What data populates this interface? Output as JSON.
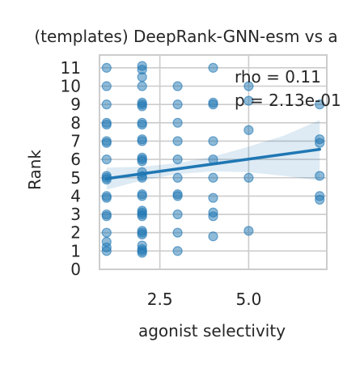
{
  "chart_data": {
    "type": "scatter",
    "title": "(templates) DeepRank-GNN-esm vs a",
    "xlabel": "agonist selectivity",
    "ylabel": "Rank",
    "xlim": [
      0.8,
      7.2
    ],
    "ylim": [
      0,
      11.7
    ],
    "xticks": [
      2.5,
      5.0
    ],
    "xtick_labels": [
      "2.5",
      "5.0"
    ],
    "yticks": [
      0,
      1,
      2,
      3,
      4,
      5,
      6,
      7,
      8,
      9,
      10,
      11
    ],
    "ytick_labels": [
      "0",
      "1",
      "2",
      "3",
      "4",
      "5",
      "6",
      "7",
      "8",
      "9",
      "10",
      "11"
    ],
    "grid": true,
    "annotations": [
      "rho = 0.11",
      "p = 2.13e-01"
    ],
    "colors": {
      "points": "#1f77b4",
      "line": "#1f77b4",
      "band": "#1f77b4",
      "grid": "#cccccc",
      "spine": "#cccccc"
    },
    "points": [
      [
        1,
        11
      ],
      [
        1,
        10
      ],
      [
        1,
        9
      ],
      [
        1,
        8
      ],
      [
        1,
        7.9
      ],
      [
        1,
        7
      ],
      [
        1,
        6.9
      ],
      [
        1,
        6
      ],
      [
        1,
        5.1
      ],
      [
        1,
        5
      ],
      [
        1,
        4.9
      ],
      [
        1,
        4
      ],
      [
        1,
        3.9
      ],
      [
        1,
        3
      ],
      [
        1,
        2.9
      ],
      [
        1,
        2
      ],
      [
        1,
        1.5
      ],
      [
        1,
        1.2
      ],
      [
        1,
        1
      ],
      [
        2,
        11.1
      ],
      [
        2,
        10.9
      ],
      [
        2,
        10.5
      ],
      [
        2,
        10
      ],
      [
        2,
        9.1
      ],
      [
        2,
        9
      ],
      [
        2,
        8.9
      ],
      [
        2,
        8
      ],
      [
        2,
        7.9
      ],
      [
        2,
        7.1
      ],
      [
        2,
        7
      ],
      [
        2,
        6.1
      ],
      [
        2,
        6
      ],
      [
        2,
        5.9
      ],
      [
        2,
        5.3
      ],
      [
        2,
        5.1
      ],
      [
        2,
        5
      ],
      [
        2,
        4.1
      ],
      [
        2,
        4
      ],
      [
        2,
        3.2
      ],
      [
        2,
        3.1
      ],
      [
        2,
        3
      ],
      [
        2,
        2.9
      ],
      [
        2,
        2.1
      ],
      [
        2,
        2
      ],
      [
        2,
        1.9
      ],
      [
        2,
        1.3
      ],
      [
        2,
        1.1
      ],
      [
        2,
        1
      ],
      [
        2,
        0.9
      ],
      [
        3,
        10
      ],
      [
        3,
        9
      ],
      [
        3,
        8
      ],
      [
        3,
        7
      ],
      [
        3,
        6
      ],
      [
        3,
        5
      ],
      [
        3,
        4.1
      ],
      [
        3,
        4
      ],
      [
        3,
        3
      ],
      [
        3,
        2
      ],
      [
        3,
        1
      ],
      [
        4,
        11
      ],
      [
        4,
        9.1
      ],
      [
        4,
        9
      ],
      [
        4,
        7
      ],
      [
        4,
        6
      ],
      [
        4,
        5
      ],
      [
        4,
        3.9
      ],
      [
        4,
        3.1
      ],
      [
        4,
        2.9
      ],
      [
        4,
        1.8
      ],
      [
        5,
        10
      ],
      [
        5,
        9.2
      ],
      [
        5,
        7.6
      ],
      [
        5,
        5
      ],
      [
        5,
        2.1
      ],
      [
        7,
        9
      ],
      [
        7,
        7.1
      ],
      [
        7,
        6.9
      ],
      [
        7,
        5.1
      ],
      [
        7,
        4
      ],
      [
        7,
        3.8
      ]
    ],
    "regression": {
      "x": [
        1,
        7
      ],
      "y": [
        4.95,
        6.55
      ]
    },
    "ci_band": {
      "x": [
        1,
        2,
        3,
        4,
        5,
        6,
        7
      ],
      "lower": [
        4.35,
        4.85,
        5.2,
        5.35,
        5.3,
        5.1,
        4.85
      ],
      "upper": [
        5.55,
        5.6,
        5.8,
        6.15,
        6.7,
        7.3,
        8.15
      ]
    }
  }
}
